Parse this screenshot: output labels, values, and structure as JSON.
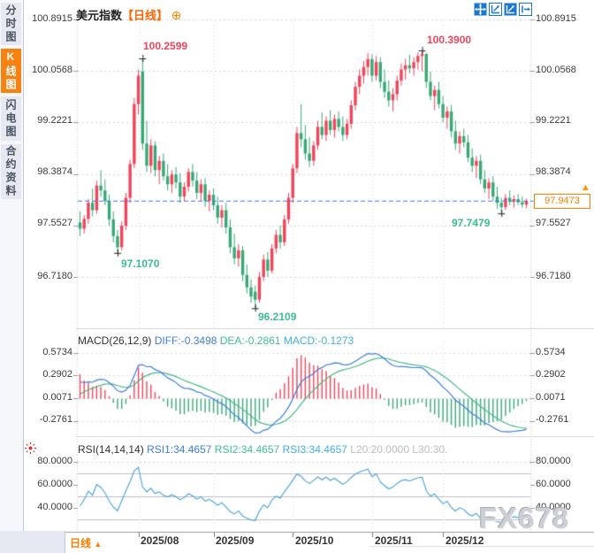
{
  "header": {
    "title": "美元指数",
    "period_tag": "【日线】",
    "plus_icon": "⊕"
  },
  "sidebar": {
    "items": [
      {
        "label": "分时图",
        "selected": false
      },
      {
        "label": "K线图",
        "selected": true
      },
      {
        "label": "闪电图",
        "selected": false
      },
      {
        "label": "合约资料",
        "selected": false
      }
    ]
  },
  "toolbar": {
    "icons": [
      "move",
      "scale-axis",
      "scale-axis-filled",
      "exit"
    ]
  },
  "main_panel": {
    "y_axis_left": [
      "100.8915",
      "100.0568",
      "99.2221",
      "98.3874",
      "97.5527",
      "96.7180"
    ],
    "y_axis_right": [
      "100.8915",
      "100.0568",
      "99.2221",
      "98.3874",
      "97.5527",
      "96.7180"
    ],
    "current_price": "97.9473",
    "price_arrow": "▲"
  },
  "macd_panel": {
    "title": "MACD(26,12,9)",
    "diff_label": "DIFF:-0.3498",
    "dea_label": "DEA:-0.2861",
    "macd_label": "MACD:-0.1273",
    "y_axis": [
      "0.5734",
      "0.2902",
      "0.0071",
      "-0.2761"
    ]
  },
  "rsi_panel": {
    "title": "RSI(14,14,14)",
    "rsi1_label": "RSI1:34.4657",
    "rsi2_label": "RSI2:34.4657",
    "rsi3_label": "RSI3:34.4657",
    "l20_label": "L20:20.0000",
    "l30_label": "L30:30.",
    "y_axis": [
      "80.0000",
      "60.0000",
      "40.0000"
    ]
  },
  "footer": {
    "period_label": "日线",
    "up_arrow": "▲",
    "dates": [
      "2025/08",
      "2025/09",
      "2025/10",
      "2025/11",
      "2025/12"
    ]
  },
  "watermark": "FX678",
  "colors": {
    "up": "#f0455a",
    "down": "#39a877",
    "diff_line": "#3d7fd8",
    "dea_line": "#46b787",
    "rsi_line": "#45a3d4",
    "last_price_line": "#2b7de0",
    "accent_orange": "#ff7e00",
    "grid": "#c9c9d6",
    "solid_grid": "#bdbdc6"
  },
  "chart_data": {
    "type": "candlestick+macd+rsi",
    "symbol": "美元指数",
    "period": "日线",
    "main_axis_prices": [
      100.8915,
      100.0568,
      99.2221,
      98.3874,
      97.5527,
      96.718
    ],
    "ylim": [
      96.718,
      100.8915
    ],
    "last_price": 97.9473,
    "macd_axis_values": [
      0.5734,
      0.2902,
      0.0071,
      -0.2761
    ],
    "macd_values": {
      "diff": -0.3498,
      "dea": -0.2861,
      "macd": -0.1273
    },
    "rsi_axis_values": [
      80.0,
      60.0,
      40.0
    ],
    "rsi_grid_lines": [
      70.0,
      50.0,
      30.0
    ],
    "rsi_values": {
      "rsi1": 34.4657,
      "rsi2": 34.4657,
      "rsi3": 34.4657,
      "l20": 20.0,
      "l30": 30.0
    },
    "month_indices": [
      14,
      32,
      51,
      70,
      87
    ],
    "annotations": [
      {
        "index": 15,
        "price": 100.2599,
        "label": "100.2599",
        "side": "high",
        "color": "red"
      },
      {
        "index": 82,
        "price": 100.39,
        "label": "100.3900",
        "side": "high",
        "color": "red"
      },
      {
        "index": 9,
        "price": 97.107,
        "label": "97.1070",
        "side": "low",
        "color": "teal"
      },
      {
        "index": 42,
        "price": 96.2109,
        "label": "96.2109",
        "side": "low",
        "color": "teal"
      },
      {
        "index": 101,
        "price": 97.7479,
        "label": "97.7479",
        "side": "low",
        "color": "teal"
      }
    ],
    "candles": [
      [
        97.6,
        97.78,
        97.38,
        97.5
      ],
      [
        97.5,
        97.72,
        97.42,
        97.66
      ],
      [
        97.66,
        97.98,
        97.58,
        97.92
      ],
      [
        97.92,
        98.15,
        97.7,
        97.8
      ],
      [
        97.8,
        98.28,
        97.74,
        98.2
      ],
      [
        98.2,
        98.45,
        98.02,
        98.12
      ],
      [
        98.12,
        98.3,
        97.88,
        97.95
      ],
      [
        97.95,
        98.05,
        97.55,
        97.65
      ],
      [
        97.65,
        97.78,
        97.28,
        97.38
      ],
      [
        97.38,
        97.48,
        97.107,
        97.2
      ],
      [
        97.2,
        97.62,
        97.15,
        97.55
      ],
      [
        97.55,
        98.08,
        97.48,
        98.0
      ],
      [
        98.0,
        98.62,
        97.92,
        98.55
      ],
      [
        98.55,
        99.62,
        98.48,
        99.52
      ],
      [
        99.52,
        100.08,
        99.35,
        99.98
      ],
      [
        100.05,
        100.2599,
        98.78,
        98.88
      ],
      [
        98.88,
        99.25,
        98.42,
        98.52
      ],
      [
        98.52,
        98.95,
        98.4,
        98.85
      ],
      [
        98.85,
        98.92,
        98.35,
        98.45
      ],
      [
        98.45,
        98.68,
        98.22,
        98.6
      ],
      [
        98.6,
        98.72,
        98.28,
        98.35
      ],
      [
        98.35,
        98.55,
        98.12,
        98.22
      ],
      [
        98.22,
        98.45,
        98.08,
        98.38
      ],
      [
        98.38,
        98.5,
        98.15,
        98.25
      ],
      [
        98.25,
        98.4,
        97.92,
        98.02
      ],
      [
        98.02,
        98.25,
        97.95,
        98.18
      ],
      [
        98.18,
        98.48,
        98.1,
        98.42
      ],
      [
        98.42,
        98.55,
        98.18,
        98.28
      ],
      [
        98.28,
        98.42,
        97.98,
        98.08
      ],
      [
        98.08,
        98.3,
        97.95,
        98.22
      ],
      [
        98.22,
        98.32,
        97.85,
        97.95
      ],
      [
        97.95,
        98.12,
        97.78,
        98.05
      ],
      [
        98.05,
        98.15,
        97.8,
        97.88
      ],
      [
        97.88,
        98.02,
        97.58,
        97.68
      ],
      [
        97.68,
        97.88,
        97.52,
        97.8
      ],
      [
        97.8,
        97.92,
        97.42,
        97.52
      ],
      [
        97.52,
        97.65,
        97.1,
        97.2
      ],
      [
        97.2,
        97.42,
        96.92,
        97.02
      ],
      [
        97.02,
        97.25,
        96.88,
        97.15
      ],
      [
        97.15,
        97.22,
        96.65,
        96.75
      ],
      [
        96.75,
        96.92,
        96.45,
        96.55
      ],
      [
        96.55,
        96.68,
        96.3,
        96.4
      ],
      [
        96.48,
        96.58,
        96.2109,
        96.35
      ],
      [
        96.35,
        96.8,
        96.3,
        96.72
      ],
      [
        96.72,
        97.08,
        96.65,
        97.0
      ],
      [
        97.0,
        97.12,
        96.72,
        96.82
      ],
      [
        96.82,
        97.25,
        96.78,
        97.18
      ],
      [
        97.18,
        97.48,
        97.1,
        97.4
      ],
      [
        97.4,
        97.55,
        97.18,
        97.28
      ],
      [
        97.28,
        97.72,
        97.22,
        97.65
      ],
      [
        97.65,
        98.08,
        97.58,
        98.0
      ],
      [
        98.0,
        98.55,
        97.92,
        98.48
      ],
      [
        98.48,
        99.15,
        98.4,
        99.05
      ],
      [
        99.05,
        99.52,
        98.82,
        98.95
      ],
      [
        98.95,
        99.18,
        98.62,
        98.72
      ],
      [
        98.72,
        98.98,
        98.5,
        98.6
      ],
      [
        98.6,
        98.92,
        98.52,
        98.85
      ],
      [
        98.85,
        99.25,
        98.78,
        99.15
      ],
      [
        99.15,
        99.38,
        98.95,
        99.02
      ],
      [
        99.02,
        99.32,
        98.92,
        99.25
      ],
      [
        99.25,
        99.42,
        99.02,
        99.1
      ],
      [
        99.1,
        99.35,
        98.98,
        99.28
      ],
      [
        99.28,
        99.4,
        99.08,
        99.15
      ],
      [
        99.15,
        99.32,
        98.92,
        99.02
      ],
      [
        99.02,
        99.28,
        98.95,
        99.2
      ],
      [
        99.2,
        99.58,
        99.12,
        99.5
      ],
      [
        99.5,
        99.88,
        99.42,
        99.8
      ],
      [
        99.8,
        100.08,
        99.68,
        99.98
      ],
      [
        99.98,
        100.22,
        99.85,
        100.12
      ],
      [
        100.12,
        100.35,
        99.98,
        100.25
      ],
      [
        100.25,
        100.33,
        99.88,
        99.98
      ],
      [
        99.98,
        100.3,
        99.9,
        100.2
      ],
      [
        100.2,
        100.28,
        99.78,
        99.88
      ],
      [
        99.88,
        100.08,
        99.62,
        99.72
      ],
      [
        99.72,
        99.9,
        99.48,
        99.58
      ],
      [
        99.58,
        99.78,
        99.4,
        99.68
      ],
      [
        99.68,
        99.98,
        99.58,
        99.9
      ],
      [
        99.9,
        100.18,
        99.82,
        100.08
      ],
      [
        100.08,
        100.25,
        99.92,
        100.15
      ],
      [
        100.15,
        100.32,
        100.02,
        100.1
      ],
      [
        100.1,
        100.28,
        99.98,
        100.2
      ],
      [
        100.2,
        100.36,
        100.08,
        100.3
      ],
      [
        100.3,
        100.39,
        100.05,
        100.33
      ],
      [
        100.33,
        100.35,
        99.78,
        99.88
      ],
      [
        99.88,
        100.05,
        99.58,
        99.65
      ],
      [
        99.65,
        99.82,
        99.42,
        99.75
      ],
      [
        99.75,
        99.88,
        99.45,
        99.52
      ],
      [
        99.52,
        99.65,
        99.22,
        99.3
      ],
      [
        99.3,
        99.48,
        99.12,
        99.4
      ],
      [
        99.4,
        99.5,
        98.98,
        99.08
      ],
      [
        99.08,
        99.25,
        98.78,
        98.88
      ],
      [
        98.88,
        99.08,
        98.72,
        99.0
      ],
      [
        99.0,
        99.12,
        98.82,
        98.9
      ],
      [
        98.9,
        99.02,
        98.58,
        98.65
      ],
      [
        98.65,
        98.8,
        98.42,
        98.52
      ],
      [
        98.52,
        98.68,
        98.32,
        98.6
      ],
      [
        98.6,
        98.7,
        98.22,
        98.3
      ],
      [
        98.3,
        98.45,
        98.08,
        98.15
      ],
      [
        98.15,
        98.32,
        97.98,
        98.25
      ],
      [
        98.25,
        98.35,
        97.95,
        98.02
      ],
      [
        98.02,
        98.18,
        97.82,
        97.92
      ],
      [
        97.92,
        98.0,
        97.7479,
        97.85
      ],
      [
        97.85,
        98.06,
        97.8,
        98.0
      ],
      [
        98.0,
        98.12,
        97.88,
        97.94
      ],
      [
        97.94,
        98.04,
        97.84,
        97.98
      ],
      [
        97.98,
        98.06,
        97.88,
        97.93
      ],
      [
        97.93,
        98.02,
        97.84,
        97.89
      ],
      [
        97.89,
        97.99,
        97.83,
        97.9473
      ]
    ]
  }
}
